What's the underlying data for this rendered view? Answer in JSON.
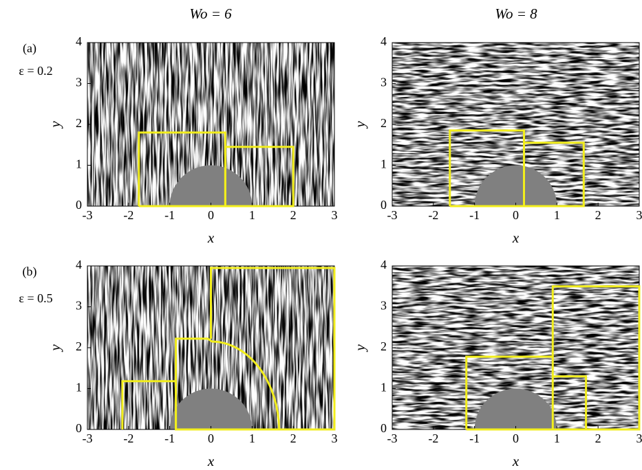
{
  "column_titles": [
    "Wo = 6",
    "Wo = 8"
  ],
  "row_labels": [
    {
      "tag": "(a)",
      "param": "ε = 0.2"
    },
    {
      "tag": "(b)",
      "param": "ε = 0.5"
    }
  ],
  "panels": [
    {
      "xlabel": "x",
      "ylabel": "y",
      "xlim": [
        -3,
        3
      ],
      "ylim": [
        0,
        4
      ],
      "xticks": [
        -3,
        -2,
        -1,
        0,
        1,
        2,
        3
      ],
      "yticks": [
        0,
        1,
        2,
        3,
        4
      ]
    },
    {
      "xlabel": "x",
      "ylabel": "y",
      "xlim": [
        -3,
        3
      ],
      "ylim": [
        0,
        4
      ],
      "xticks": [
        -3,
        -2,
        -1,
        0,
        1,
        2,
        3
      ],
      "yticks": [
        0,
        1,
        2,
        3,
        4
      ]
    },
    {
      "xlabel": "x",
      "ylabel": "y",
      "xlim": [
        -3,
        3
      ],
      "ylim": [
        0,
        4
      ],
      "xticks": [
        -3,
        -2,
        -1,
        0,
        1,
        2,
        3
      ],
      "yticks": [
        0,
        1,
        2,
        3,
        4
      ]
    },
    {
      "xlabel": "x",
      "ylabel": "y",
      "xlim": [
        -3,
        3
      ],
      "ylim": [
        0,
        4
      ],
      "xticks": [
        -3,
        -2,
        -1,
        0,
        1,
        2,
        3
      ],
      "yticks": [
        0,
        1,
        2,
        3,
        4
      ]
    }
  ]
}
